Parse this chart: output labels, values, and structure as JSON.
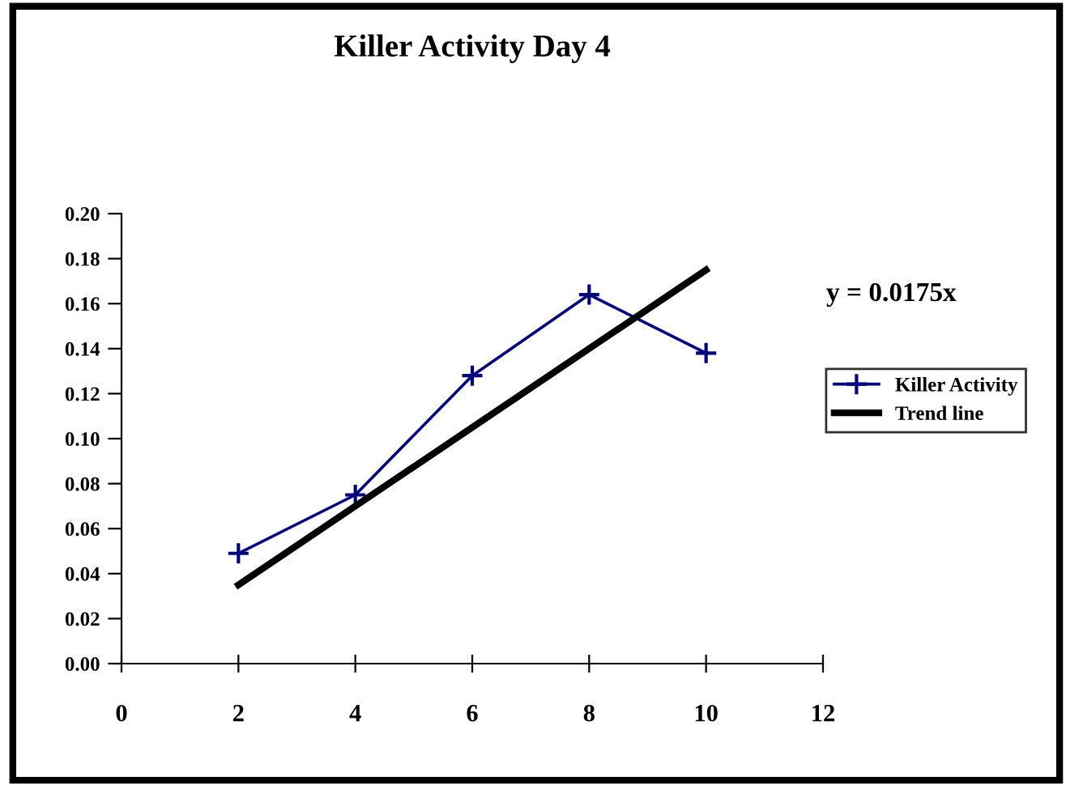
{
  "chart_data": {
    "type": "line",
    "title": "Killer Activity Day 4",
    "xlim": [
      0,
      12
    ],
    "xticks": [
      0,
      2,
      4,
      6,
      8,
      10,
      12
    ],
    "ylim": [
      0,
      0.2
    ],
    "yticks": [
      {
        "value": 0,
        "label": "0.00"
      },
      {
        "value": 0.02,
        "label": "0.02"
      },
      {
        "value": 0.04,
        "label": "0.04"
      },
      {
        "value": 0.06,
        "label": "0.06"
      },
      {
        "value": 0.08,
        "label": "0.08"
      },
      {
        "value": 0.1,
        "label": "0.10"
      },
      {
        "value": 0.12,
        "label": "0.12"
      },
      {
        "value": 0.14,
        "label": "0.14"
      },
      {
        "value": 0.16,
        "label": "0.16"
      },
      {
        "value": 0.18,
        "label": "0.18"
      },
      {
        "value": 0.2,
        "label": "0.20"
      }
    ],
    "series": [
      {
        "name": "Killer Activity",
        "color": "#000080",
        "x": [
          2,
          4,
          6,
          8,
          10
        ],
        "values": [
          0.049,
          0.075,
          0.128,
          0.164,
          0.138
        ],
        "marker": "cross"
      },
      {
        "name": "Trend line",
        "color": "#000000",
        "x": [
          2,
          10
        ],
        "values": [
          0.035,
          0.175
        ],
        "marker": "none"
      }
    ],
    "annotations": [
      "y = 0.0175x"
    ],
    "legend": "right",
    "grid": false
  }
}
